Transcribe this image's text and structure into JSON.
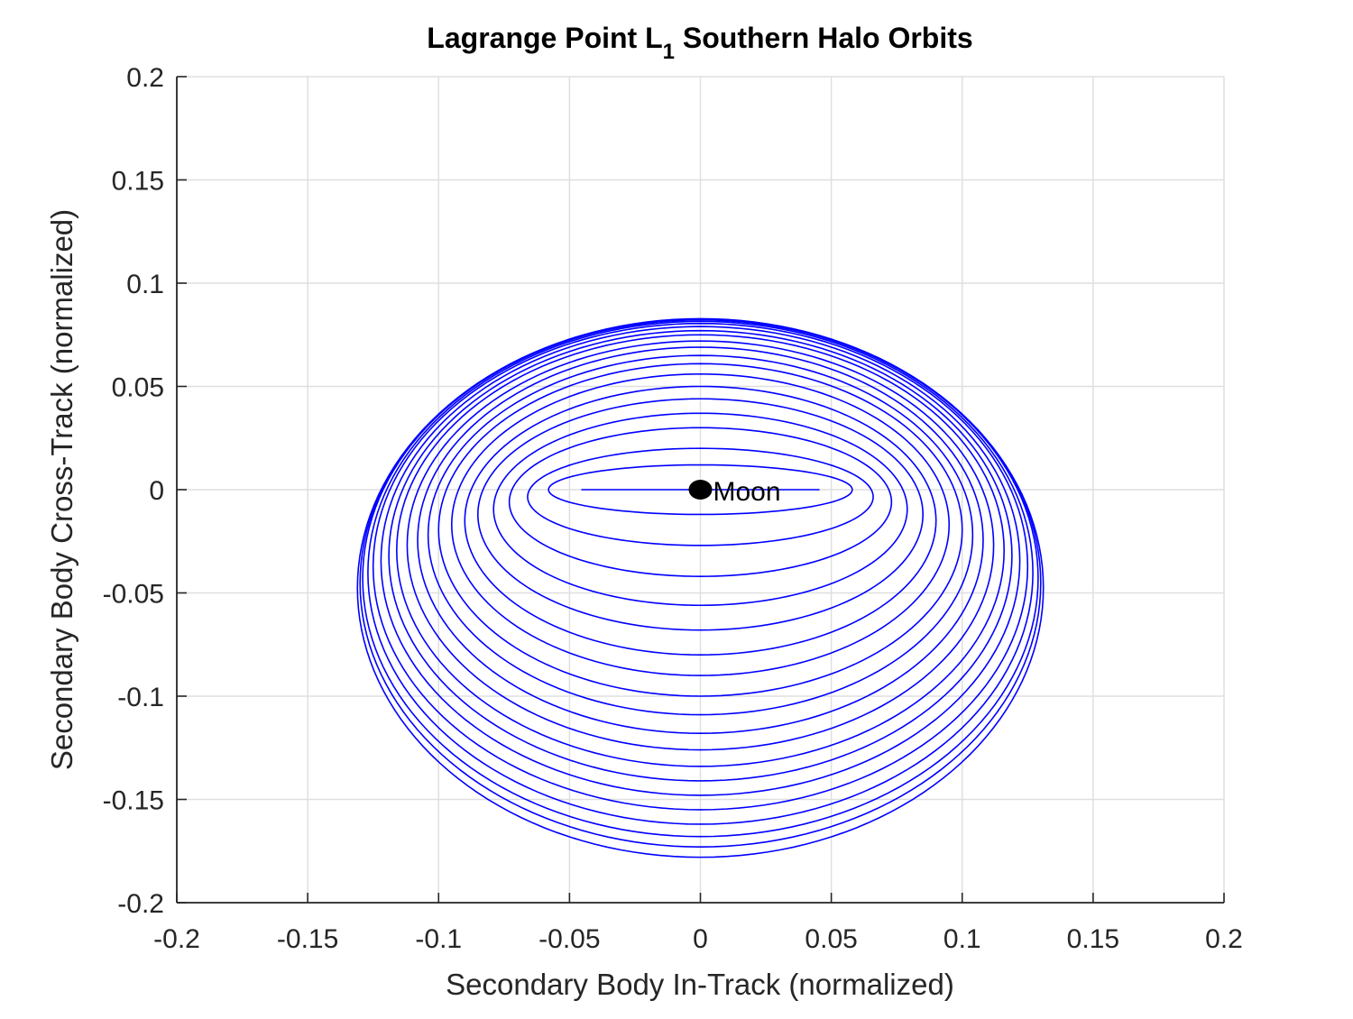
{
  "chart_data": {
    "type": "line",
    "title": "Lagrange Point L",
    "title_subscript": "1",
    "title_suffix": " Southern Halo Orbits",
    "xlabel": "Secondary Body In-Track (normalized)",
    "ylabel": "Secondary Body Cross-Track (normalized)",
    "xlim": [
      -0.2,
      0.2
    ],
    "ylim": [
      -0.2,
      0.2
    ],
    "xticks": [
      -0.2,
      -0.15,
      -0.1,
      -0.05,
      0,
      0.05,
      0.1,
      0.15,
      0.2
    ],
    "yticks": [
      -0.2,
      -0.15,
      -0.1,
      -0.05,
      0,
      0.05,
      0.1,
      0.15,
      0.2
    ],
    "xtick_labels": [
      "-0.2",
      "-0.15",
      "-0.1",
      "-0.05",
      "0",
      "0.05",
      "0.1",
      "0.15",
      "0.2"
    ],
    "ytick_labels": [
      "-0.2",
      "-0.15",
      "-0.1",
      "-0.05",
      "0",
      "0.05",
      "0.1",
      "0.15",
      "0.2"
    ],
    "grid": true,
    "line_color": "#0000ff",
    "marker_color": "#000000",
    "orbit_family": [
      {
        "x_min": -0.0455,
        "x_max": 0.0455,
        "y_top": 0.0,
        "y_bottom": 0.0
      },
      {
        "x_min": -0.058,
        "x_max": 0.058,
        "y_top": 0.012,
        "y_bottom": -0.012
      },
      {
        "x_min": -0.066,
        "x_max": 0.066,
        "y_top": 0.02,
        "y_bottom": -0.027
      },
      {
        "x_min": -0.073,
        "x_max": 0.073,
        "y_top": 0.03,
        "y_bottom": -0.042
      },
      {
        "x_min": -0.079,
        "x_max": 0.079,
        "y_top": 0.037,
        "y_bottom": -0.056
      },
      {
        "x_min": -0.085,
        "x_max": 0.085,
        "y_top": 0.044,
        "y_bottom": -0.068
      },
      {
        "x_min": -0.09,
        "x_max": 0.09,
        "y_top": 0.05,
        "y_bottom": -0.08
      },
      {
        "x_min": -0.095,
        "x_max": 0.095,
        "y_top": 0.056,
        "y_bottom": -0.09
      },
      {
        "x_min": -0.1,
        "x_max": 0.1,
        "y_top": 0.061,
        "y_bottom": -0.1
      },
      {
        "x_min": -0.104,
        "x_max": 0.104,
        "y_top": 0.065,
        "y_bottom": -0.109
      },
      {
        "x_min": -0.108,
        "x_max": 0.108,
        "y_top": 0.069,
        "y_bottom": -0.118
      },
      {
        "x_min": -0.112,
        "x_max": 0.112,
        "y_top": 0.072,
        "y_bottom": -0.126
      },
      {
        "x_min": -0.116,
        "x_max": 0.116,
        "y_top": 0.075,
        "y_bottom": -0.134
      },
      {
        "x_min": -0.119,
        "x_max": 0.119,
        "y_top": 0.077,
        "y_bottom": -0.141
      },
      {
        "x_min": -0.122,
        "x_max": 0.122,
        "y_top": 0.079,
        "y_bottom": -0.148
      },
      {
        "x_min": -0.125,
        "x_max": 0.125,
        "y_top": 0.0805,
        "y_bottom": -0.155
      },
      {
        "x_min": -0.127,
        "x_max": 0.127,
        "y_top": 0.0815,
        "y_bottom": -0.162
      },
      {
        "x_min": -0.129,
        "x_max": 0.129,
        "y_top": 0.0822,
        "y_bottom": -0.168
      },
      {
        "x_min": -0.13,
        "x_max": 0.13,
        "y_top": 0.0826,
        "y_bottom": -0.173
      },
      {
        "x_min": -0.131,
        "x_max": 0.131,
        "y_top": 0.0828,
        "y_bottom": -0.178
      }
    ],
    "annotations": [
      {
        "label": "Moon",
        "x": 0.0,
        "y": 0.0,
        "marker": "filled-circle"
      }
    ]
  }
}
